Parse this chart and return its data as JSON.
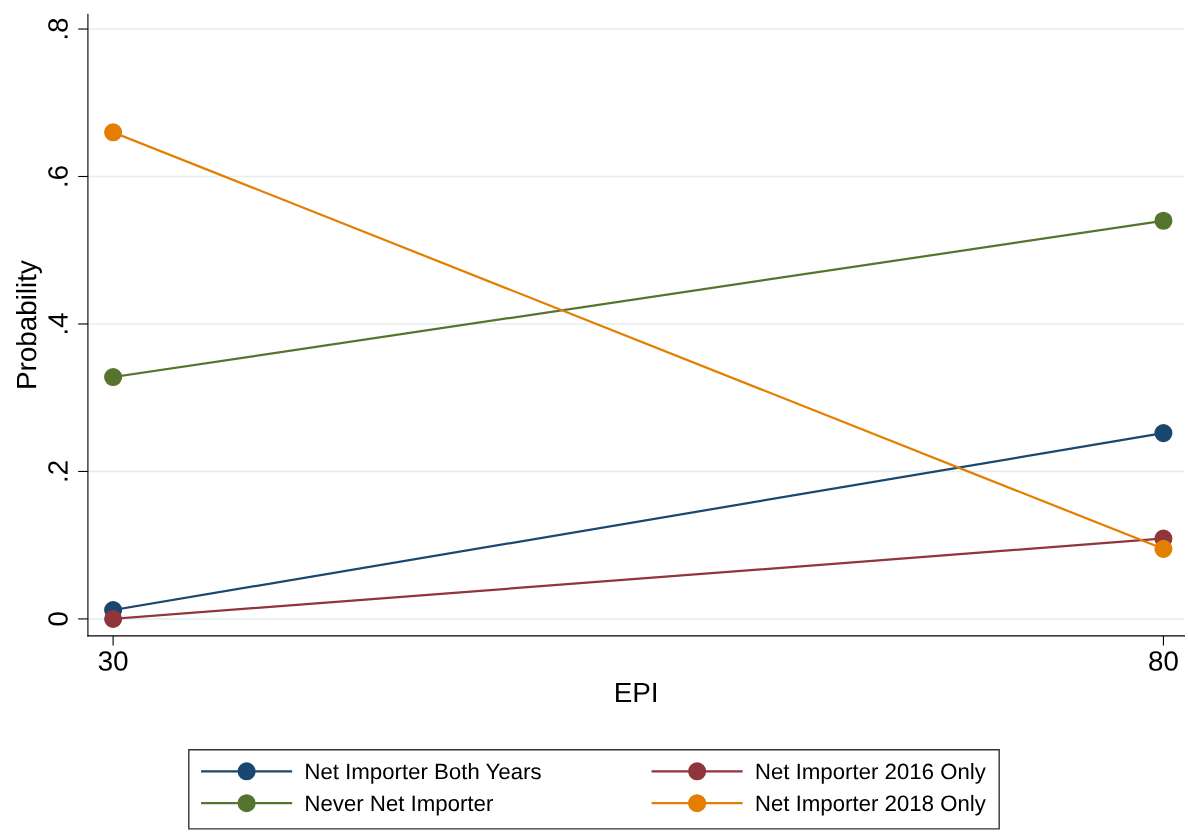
{
  "chart_data": {
    "type": "line",
    "xlabel": "EPI",
    "ylabel": "Probability",
    "x": [
      30,
      80
    ],
    "series": [
      {
        "name": "Net Importer Both Years",
        "color": "#1a476f",
        "values": [
          0.012,
          0.252
        ]
      },
      {
        "name": "Never Net Importer",
        "color": "#55752f",
        "values": [
          0.328,
          0.54
        ]
      },
      {
        "name": "Net Importer 2016 Only",
        "color": "#90353b",
        "values": [
          0.0,
          0.109
        ]
      },
      {
        "name": "Net Importer 2018 Only",
        "color": "#e37e00",
        "values": [
          0.66,
          0.095
        ]
      }
    ],
    "xlim": [
      28.8,
      81
    ],
    "xticks": [
      30,
      80
    ],
    "ylim": [
      -0.023,
      0.82
    ],
    "yticks": [
      {
        "value": 0,
        "label": "0"
      },
      {
        "value": 0.2,
        "label": ".2"
      },
      {
        "value": 0.4,
        "label": ".4"
      },
      {
        "value": 0.6,
        "label": ".6"
      },
      {
        "value": 0.8,
        "label": ".8"
      }
    ],
    "grid": "y",
    "legend": "bottom",
    "marker": "circle",
    "line_style": "solid"
  }
}
